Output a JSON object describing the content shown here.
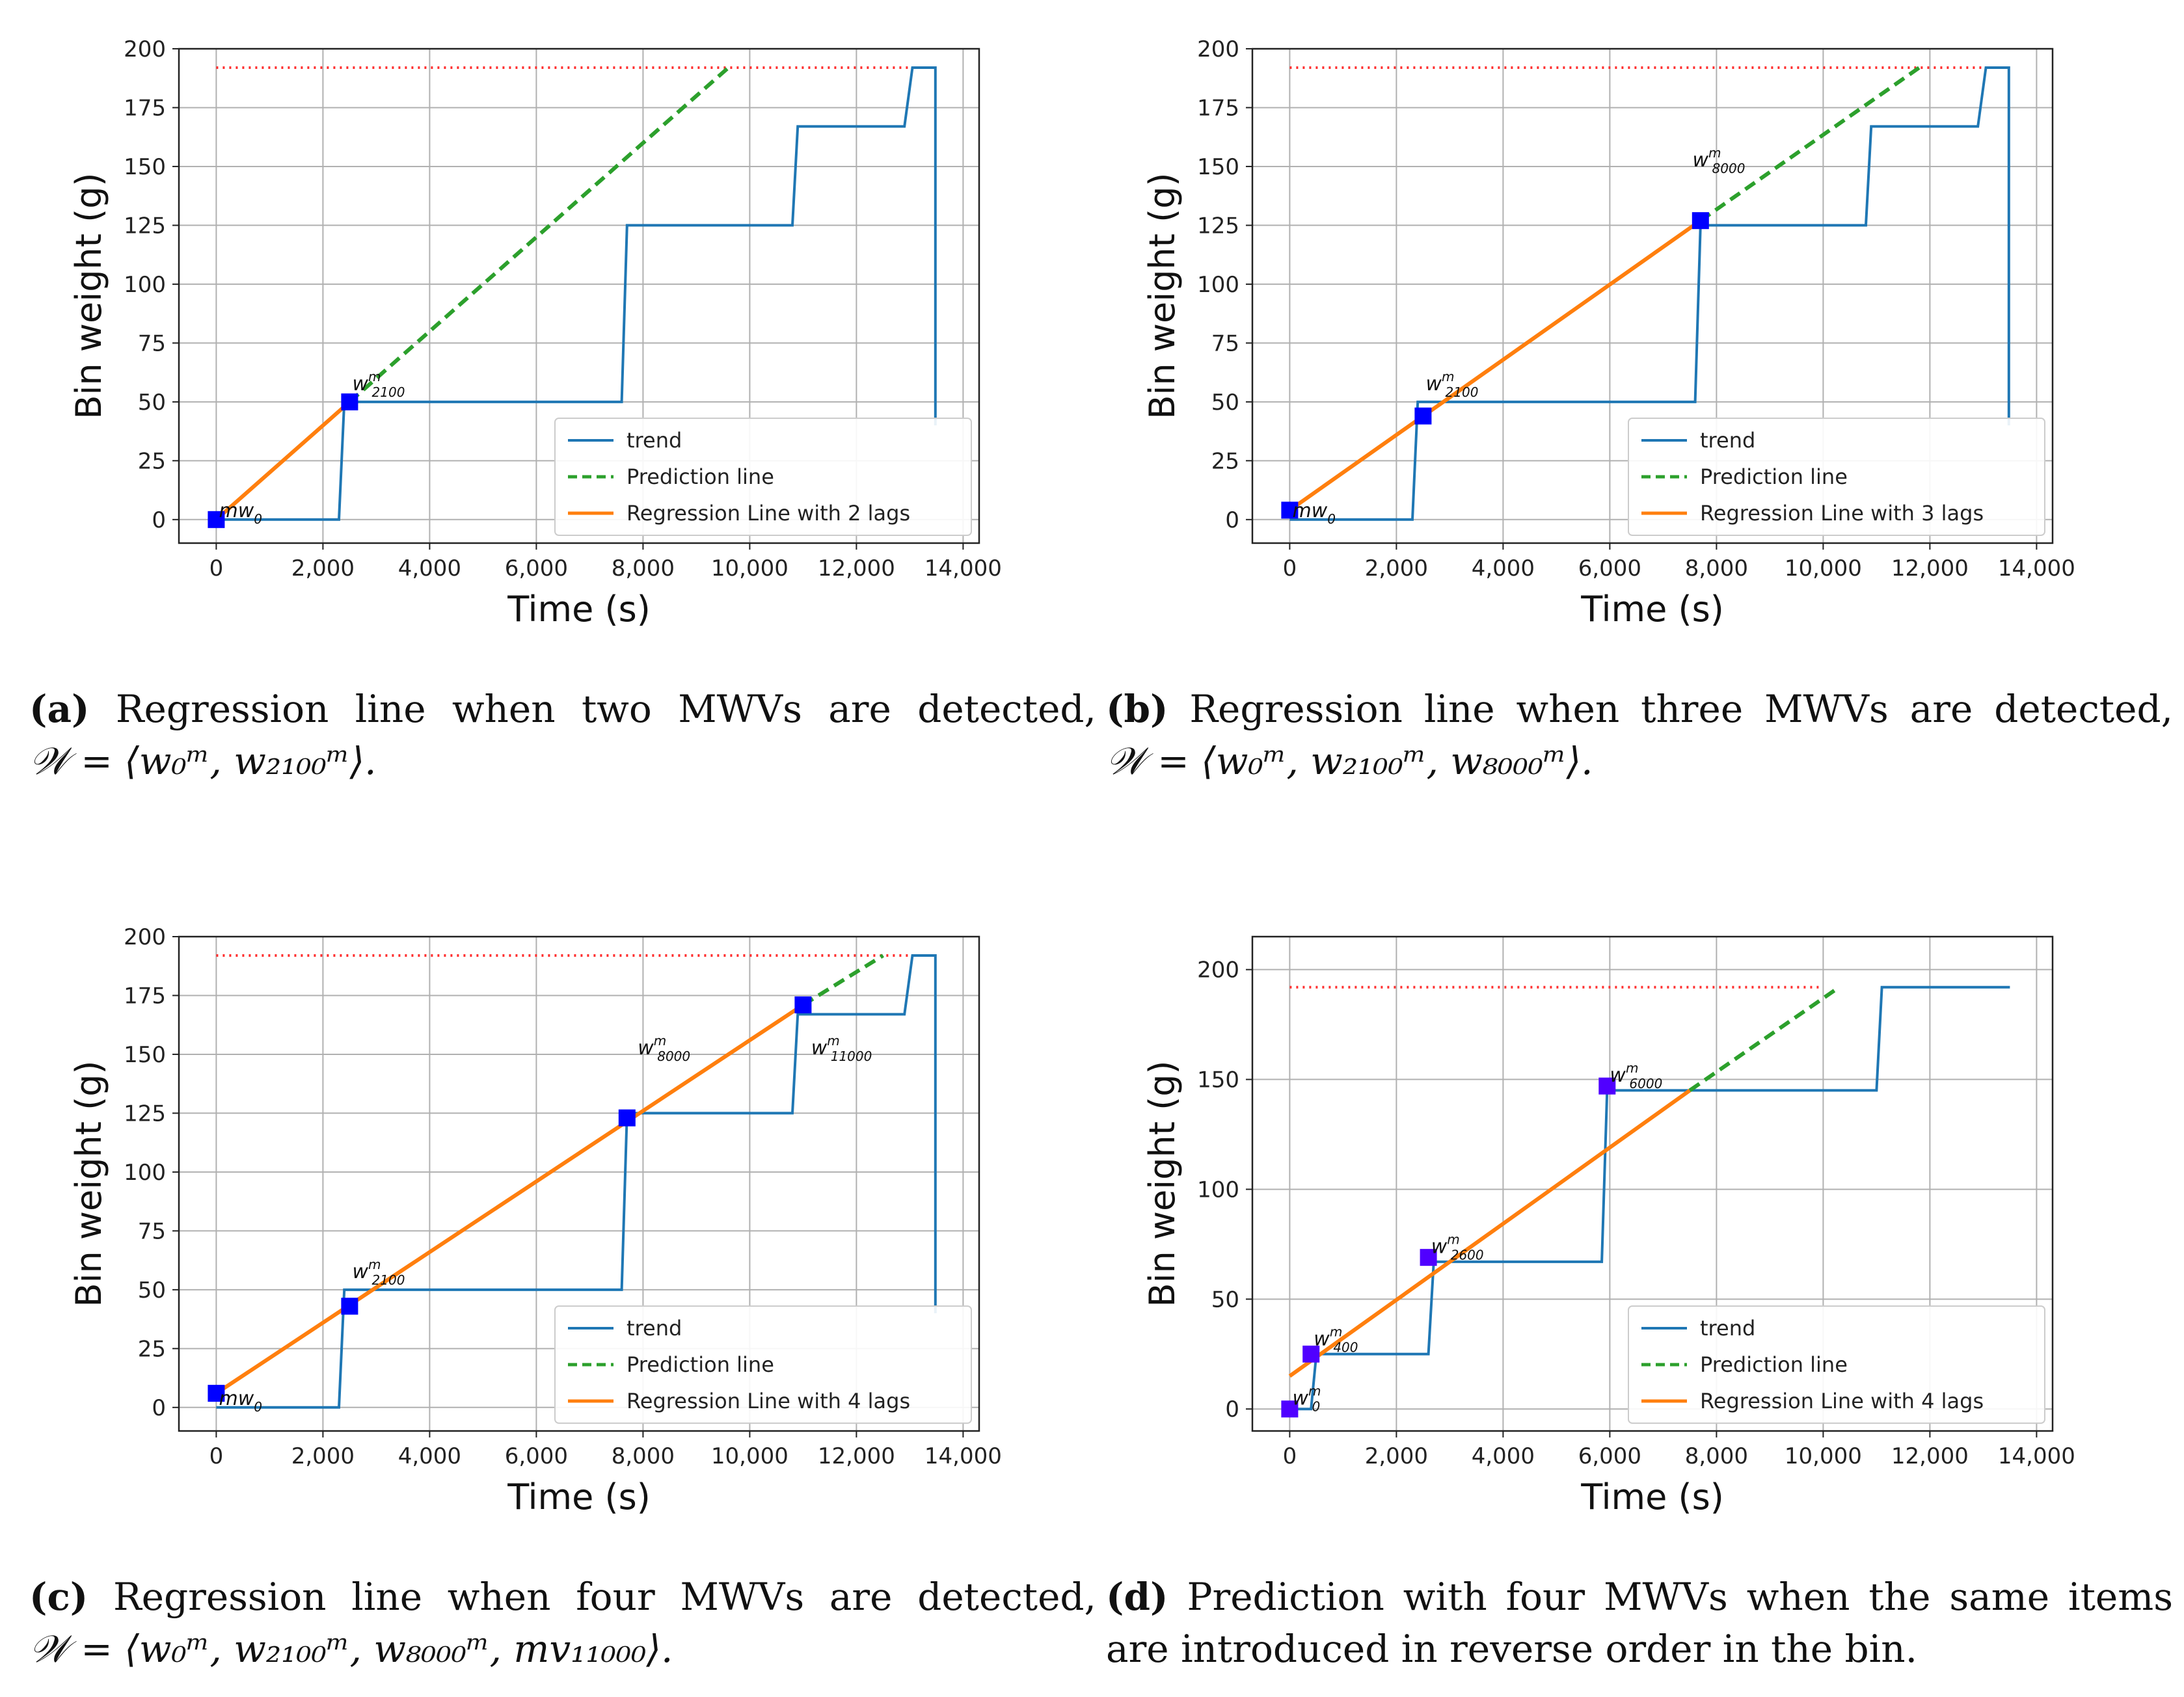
{
  "colors": {
    "trend": "#1f77b4",
    "prediction": "#2ca02c",
    "regression": "#ff7f0e",
    "threshold": "#ff3030",
    "marker": "#0000ff",
    "marker_d": "#5000ff",
    "grid": "#b0b0b0"
  },
  "chart_data": [
    {
      "id": "a",
      "type": "line",
      "xlabel": "Time (s)",
      "ylabel": "Bin weight (g)",
      "xlim": [
        -700,
        14300
      ],
      "ylim": [
        -10,
        200
      ],
      "xticks": [
        0,
        2000,
        4000,
        6000,
        8000,
        10000,
        12000,
        14000
      ],
      "xtick_labels": [
        "0",
        "2,000",
        "4,000",
        "6,000",
        "8,000",
        "10,000",
        "12,000",
        "14,000"
      ],
      "yticks": [
        0,
        25,
        50,
        75,
        100,
        125,
        150,
        175,
        200
      ],
      "ytick_labels": [
        "0",
        "25",
        "50",
        "75",
        "100",
        "125",
        "150",
        "175",
        "200"
      ],
      "threshold": {
        "y": 192,
        "x": [
          0,
          13500
        ]
      },
      "trend": {
        "x": [
          0,
          2300,
          2400,
          7600,
          7700,
          10800,
          10900,
          12900,
          13050,
          13450,
          13480,
          13480
        ],
        "y": [
          0,
          0,
          50,
          50,
          125,
          125,
          167,
          167,
          192,
          192,
          192,
          40
        ]
      },
      "regression": {
        "x": [
          0,
          2500
        ],
        "y": [
          0,
          50
        ]
      },
      "prediction": {
        "x": [
          2500,
          9600
        ],
        "y": [
          50,
          192
        ]
      },
      "markers": {
        "x": [
          0,
          2500
        ],
        "y": [
          0,
          50
        ]
      },
      "annotations": [
        {
          "text": "w",
          "sup": "m",
          "sub": "2100",
          "x": 2550,
          "y": 55
        },
        {
          "text": "mw",
          "sub": "0",
          "x": 50,
          "y": 1
        }
      ],
      "legend": {
        "location": "lower-right",
        "entries": [
          "trend",
          "Prediction line",
          "Regression Line with 2 lags"
        ]
      }
    },
    {
      "id": "b",
      "type": "line",
      "xlabel": "Time (s)",
      "ylabel": "Bin weight (g)",
      "xlim": [
        -700,
        14300
      ],
      "ylim": [
        -10,
        200
      ],
      "xticks": [
        0,
        2000,
        4000,
        6000,
        8000,
        10000,
        12000,
        14000
      ],
      "xtick_labels": [
        "0",
        "2,000",
        "4,000",
        "6,000",
        "8,000",
        "10,000",
        "12,000",
        "14,000"
      ],
      "yticks": [
        0,
        25,
        50,
        75,
        100,
        125,
        150,
        175,
        200
      ],
      "ytick_labels": [
        "0",
        "25",
        "50",
        "75",
        "100",
        "125",
        "150",
        "175",
        "200"
      ],
      "threshold": {
        "y": 192,
        "x": [
          0,
          13500
        ]
      },
      "trend": {
        "x": [
          0,
          2300,
          2400,
          7600,
          7700,
          10800,
          10900,
          12900,
          13050,
          13450,
          13480,
          13480
        ],
        "y": [
          0,
          0,
          50,
          50,
          125,
          125,
          167,
          167,
          192,
          192,
          192,
          40
        ]
      },
      "regression": {
        "x": [
          0,
          7700
        ],
        "y": [
          4,
          127
        ]
      },
      "prediction": {
        "x": [
          7700,
          11800
        ],
        "y": [
          127,
          192
        ]
      },
      "markers": {
        "x": [
          0,
          2500,
          7700
        ],
        "y": [
          4,
          44,
          127
        ]
      },
      "annotations": [
        {
          "text": "w",
          "sup": "m",
          "sub": "2100",
          "x": 2550,
          "y": 55
        },
        {
          "text": "w",
          "sup": "m",
          "sub": "8000",
          "x": 7550,
          "y": 150
        },
        {
          "text": "mw",
          "sub": "0",
          "x": 50,
          "y": 1
        }
      ],
      "legend": {
        "location": "lower-right",
        "entries": [
          "trend",
          "Prediction line",
          "Regression Line with 3 lags"
        ]
      }
    },
    {
      "id": "c",
      "type": "line",
      "xlabel": "Time (s)",
      "ylabel": "Bin weight (g)",
      "xlim": [
        -700,
        14300
      ],
      "ylim": [
        -10,
        200
      ],
      "xticks": [
        0,
        2000,
        4000,
        6000,
        8000,
        10000,
        12000,
        14000
      ],
      "xtick_labels": [
        "0",
        "2,000",
        "4,000",
        "6,000",
        "8,000",
        "10,000",
        "12,000",
        "14,000"
      ],
      "yticks": [
        0,
        25,
        50,
        75,
        100,
        125,
        150,
        175,
        200
      ],
      "ytick_labels": [
        "0",
        "25",
        "50",
        "75",
        "100",
        "125",
        "150",
        "175",
        "200"
      ],
      "threshold": {
        "y": 192,
        "x": [
          0,
          13500
        ]
      },
      "trend": {
        "x": [
          0,
          2300,
          2400,
          7600,
          7700,
          10800,
          10900,
          12900,
          13050,
          13450,
          13480,
          13480
        ],
        "y": [
          0,
          0,
          50,
          50,
          125,
          125,
          167,
          167,
          192,
          192,
          192,
          40
        ]
      },
      "regression": {
        "x": [
          0,
          11000
        ],
        "y": [
          6,
          171
        ]
      },
      "prediction": {
        "x": [
          11000,
          12500
        ],
        "y": [
          171,
          192
        ]
      },
      "markers": {
        "x": [
          0,
          2500,
          7700,
          11000
        ],
        "y": [
          6,
          43,
          123,
          171
        ]
      },
      "annotations": [
        {
          "text": "w",
          "sup": "m",
          "sub": "2100",
          "x": 2550,
          "y": 55
        },
        {
          "text": "w",
          "sup": "m",
          "sub": "8000",
          "x": 7900,
          "y": 150
        },
        {
          "text": "w",
          "sup": "m",
          "sub": "11000",
          "x": 11150,
          "y": 150
        },
        {
          "text": "mw",
          "sub": "0",
          "x": 50,
          "y": 1
        }
      ],
      "legend": {
        "location": "lower-right",
        "entries": [
          "trend",
          "Prediction line",
          "Regression Line with 4 lags"
        ]
      }
    },
    {
      "id": "d",
      "type": "line",
      "xlabel": "Time (s)",
      "ylabel": "Bin weight (g)",
      "xlim": [
        -700,
        14300
      ],
      "ylim": [
        -10,
        215
      ],
      "xticks": [
        0,
        2000,
        4000,
        6000,
        8000,
        10000,
        12000,
        14000
      ],
      "xtick_labels": [
        "0",
        "2,000",
        "4,000",
        "6,000",
        "8,000",
        "10,000",
        "12,000",
        "14,000"
      ],
      "yticks": [
        0,
        50,
        100,
        150,
        200
      ],
      "ytick_labels": [
        "0",
        "50",
        "100",
        "150",
        "200"
      ],
      "threshold": {
        "y": 192,
        "x": [
          0,
          10000
        ]
      },
      "trend": {
        "x": [
          0,
          400,
          500,
          2600,
          2700,
          5850,
          5950,
          11000,
          11100,
          13500
        ],
        "y": [
          0,
          0,
          25,
          25,
          67,
          67,
          145,
          145,
          192,
          192
        ]
      },
      "regression": {
        "x": [
          0,
          7500
        ],
        "y": [
          15,
          145
        ]
      },
      "prediction": {
        "x": [
          7500,
          10300
        ],
        "y": [
          145,
          192
        ]
      },
      "markers": {
        "x": [
          0,
          400,
          2600,
          5950
        ],
        "y": [
          0,
          25,
          69,
          147
        ]
      },
      "annotations": [
        {
          "text": "w",
          "sup": "m",
          "sub": "0",
          "x": 50,
          "y": 2
        },
        {
          "text": "w",
          "sup": "m",
          "sub": "400",
          "x": 450,
          "y": 29
        },
        {
          "text": "w",
          "sup": "m",
          "sub": "2600",
          "x": 2650,
          "y": 71
        },
        {
          "text": "w",
          "sup": "m",
          "sub": "6000",
          "x": 6000,
          "y": 149
        }
      ],
      "legend": {
        "location": "lower-right",
        "entries": [
          "trend",
          "Prediction line",
          "Regression Line with 4 lags"
        ]
      }
    }
  ],
  "captions": [
    {
      "tag": "(a)",
      "line1": "Regression line when two MWVs are detected,",
      "line2": "𝒲 = ⟨w₀ᵐ, w₂₁₀₀ᵐ⟩."
    },
    {
      "tag": "(b)",
      "line1": "Regression line when three MWVs are detected,",
      "line2": "𝒲 = ⟨w₀ᵐ, w₂₁₀₀ᵐ, w₈₀₀₀ᵐ⟩."
    },
    {
      "tag": "(c)",
      "line1": "Regression line when four MWVs are detected,",
      "line2": "𝒲 = ⟨w₀ᵐ, w₂₁₀₀ᵐ, w₈₀₀₀ᵐ, mv₁₁₀₀₀⟩."
    },
    {
      "tag": "(d)",
      "line1": "Prediction with four MWVs when the same items",
      "line2": "are introduced in reverse order in the bin."
    }
  ]
}
